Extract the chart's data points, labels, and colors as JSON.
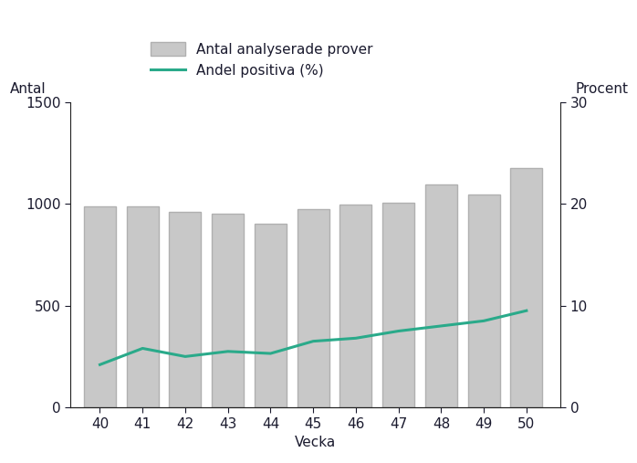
{
  "weeks": [
    40,
    41,
    42,
    43,
    44,
    45,
    46,
    47,
    48,
    49,
    50
  ],
  "bar_values": [
    985,
    985,
    960,
    950,
    900,
    975,
    995,
    1005,
    1095,
    1045,
    1174
  ],
  "line_values": [
    4.2,
    5.8,
    5.0,
    5.5,
    5.3,
    6.5,
    6.8,
    7.5,
    8.0,
    8.5,
    9.5
  ],
  "bar_color": "#c8c8c8",
  "bar_edgecolor": "#b0b0b0",
  "line_color": "#2aaa8a",
  "left_ylabel": "Antal",
  "right_ylabel": "Procent",
  "xlabel": "Vecka",
  "left_ylim": [
    0,
    1500
  ],
  "right_ylim": [
    0,
    30
  ],
  "left_yticks": [
    0,
    500,
    1000,
    1500
  ],
  "right_yticks": [
    0,
    10,
    20,
    30
  ],
  "legend_labels": [
    "Antal analyserade prover",
    "Andel positiva (%)"
  ],
  "axis_label_fontsize": 11,
  "tick_fontsize": 11,
  "legend_fontsize": 11,
  "text_color": "#1a1a2e",
  "spine_color": "#222222",
  "background_color": "#ffffff"
}
